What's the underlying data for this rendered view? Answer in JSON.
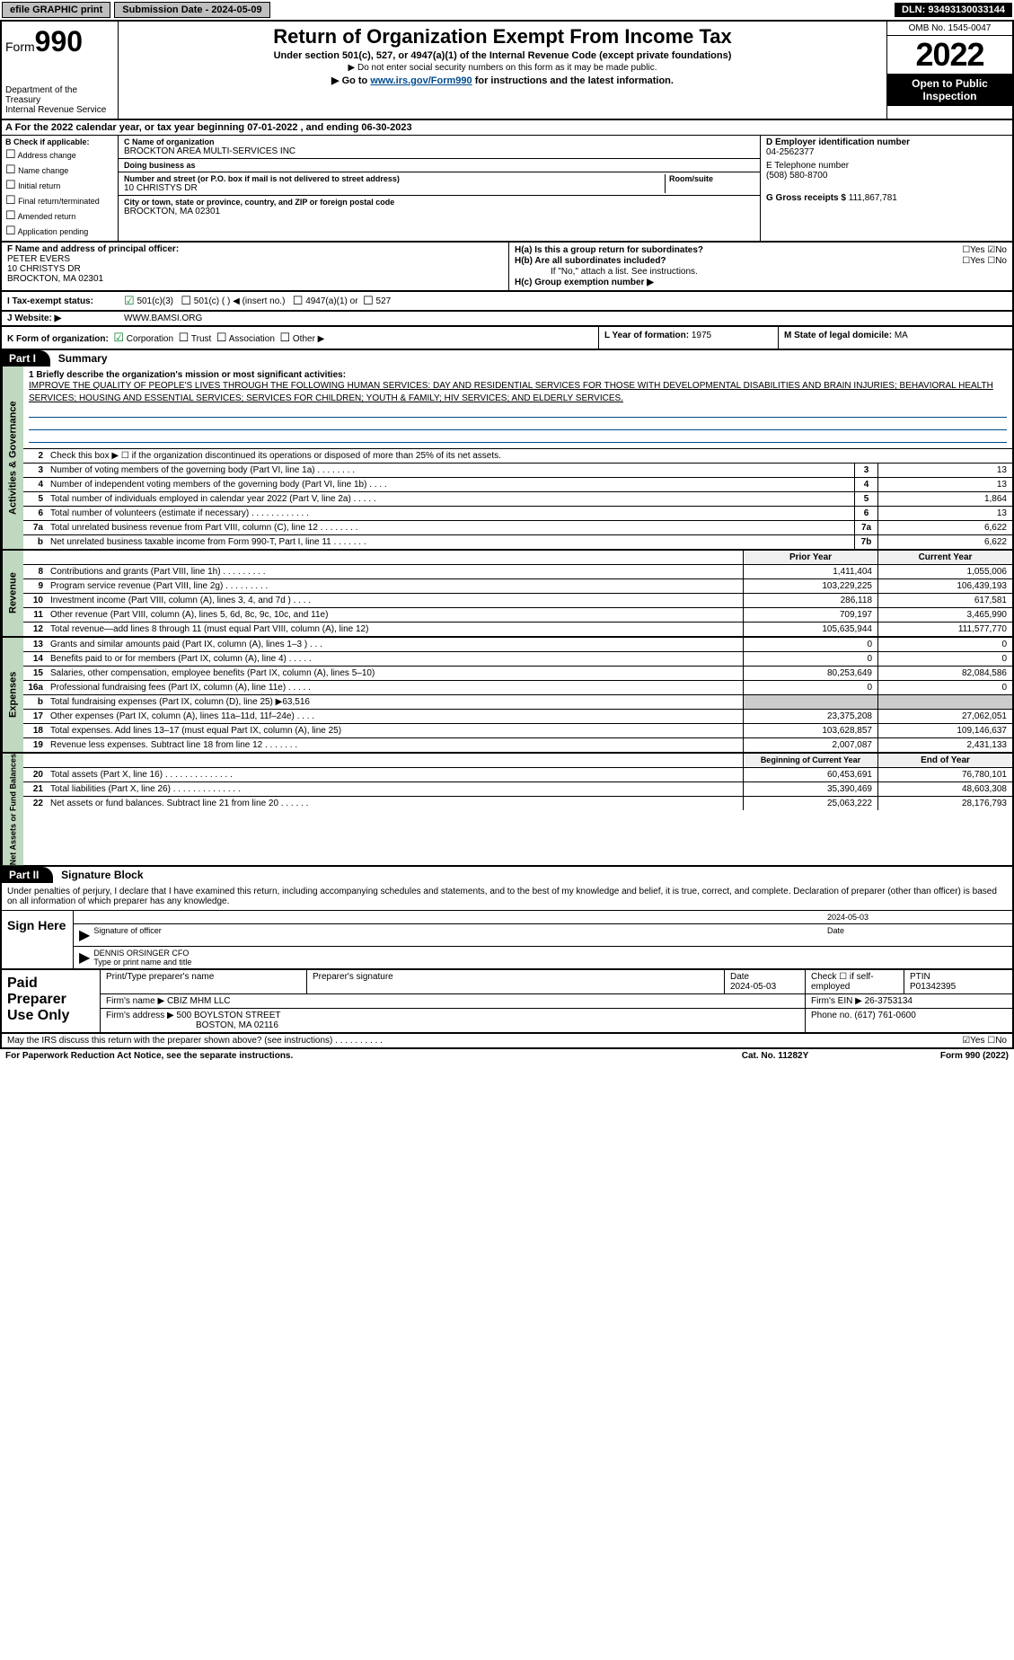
{
  "topbar": {
    "efile": "efile GRAPHIC print",
    "submission": "Submission Date - 2024-05-09",
    "dln": "DLN: 93493130033144"
  },
  "header": {
    "form_word": "Form",
    "form_num": "990",
    "dept": "Department of the Treasury",
    "irs": "Internal Revenue Service",
    "title": "Return of Organization Exempt From Income Tax",
    "sub": "Under section 501(c), 527, or 4947(a)(1) of the Internal Revenue Code (except private foundations)",
    "note1": "▶ Do not enter social security numbers on this form as it may be made public.",
    "note2_pre": "▶ Go to ",
    "note2_link": "www.irs.gov/Form990",
    "note2_post": " for instructions and the latest information.",
    "omb": "OMB No. 1545-0047",
    "year": "2022",
    "otp": "Open to Public Inspection"
  },
  "row_a": "A For the 2022 calendar year, or tax year beginning 07-01-2022    , and ending 06-30-2023",
  "col_b": {
    "title": "B Check if applicable:",
    "items": [
      "Address change",
      "Name change",
      "Initial return",
      "Final return/terminated",
      "Amended return",
      "Application pending"
    ]
  },
  "col_c": {
    "name_lbl": "C Name of organization",
    "name": "BROCKTON AREA MULTI-SERVICES INC",
    "dba_lbl": "Doing business as",
    "dba": "",
    "addr_lbl": "Number and street (or P.O. box if mail is not delivered to street address)",
    "room_lbl": "Room/suite",
    "addr": "10 CHRISTYS DR",
    "city_lbl": "City or town, state or province, country, and ZIP or foreign postal code",
    "city": "BROCKTON, MA  02301"
  },
  "col_d": {
    "ein_lbl": "D Employer identification number",
    "ein": "04-2562377",
    "tel_lbl": "E Telephone number",
    "tel": "(508) 580-8700",
    "gross_lbl": "G Gross receipts $",
    "gross": "111,867,781"
  },
  "col_f": {
    "lbl": "F Name and address of principal officer:",
    "name": "PETER EVERS",
    "addr1": "10 CHRISTYS DR",
    "addr2": "BROCKTON, MA  02301"
  },
  "col_h": {
    "ha": "H(a)  Is this a group return for subordinates?",
    "ha_ans": "☐Yes ☑No",
    "hb": "H(b)  Are all subordinates included?",
    "hb_ans": "☐Yes ☐No",
    "hb_note": "If \"No,\" attach a list. See instructions.",
    "hc": "H(c)  Group exemption number ▶"
  },
  "row_i": {
    "lbl": "I   Tax-exempt status:",
    "opt1": "501(c)(3)",
    "opt2": "501(c) (  ) ◀ (insert no.)",
    "opt3": "4947(a)(1) or",
    "opt4": "527"
  },
  "row_j": {
    "lbl": "J   Website: ▶",
    "val": "WWW.BAMSI.ORG"
  },
  "row_k": {
    "lbl": "K Form of organization:",
    "opts": [
      "Corporation",
      "Trust",
      "Association",
      "Other ▶"
    ]
  },
  "row_l": {
    "year_lbl": "L Year of formation:",
    "year": "1975",
    "state_lbl": "M State of legal domicile:",
    "state": "MA"
  },
  "part1": {
    "tab": "Part I",
    "title": "Summary",
    "mission_lbl": "1  Briefly describe the organization's mission or most significant activities:",
    "mission": "IMPROVE THE QUALITY OF PEOPLE'S LIVES THROUGH THE FOLLOWING HUMAN SERVICES: DAY AND RESIDENTIAL SERVICES FOR THOSE WITH DEVELOPMENTAL DISABILITIES AND BRAIN INJURIES; BEHAVIORAL HEALTH SERVICES; HOUSING AND ESSENTIAL SERVICES; SERVICES FOR CHILDREN; YOUTH & FAMILY; HIV SERVICES; AND ELDERLY SERVICES.",
    "line2": "Check this box ▶ ☐  if the organization discontinued its operations or disposed of more than 25% of its net assets.",
    "vtabs": {
      "gov": "Activities & Governance",
      "rev": "Revenue",
      "exp": "Expenses",
      "net": "Net Assets or Fund Balances"
    },
    "gov_lines": [
      {
        "n": "3",
        "d": "Number of voting members of the governing body (Part VI, line 1a)   .    .    .    .    .    .    .    .",
        "b": "3",
        "v": "13"
      },
      {
        "n": "4",
        "d": "Number of independent voting members of the governing body (Part VI, line 1b)  .    .    .    .",
        "b": "4",
        "v": "13"
      },
      {
        "n": "5",
        "d": "Total number of individuals employed in calendar year 2022 (Part V, line 2a)   .    .    .    .    .",
        "b": "5",
        "v": "1,864"
      },
      {
        "n": "6",
        "d": "Total number of volunteers (estimate if necessary)    .    .    .    .    .    .    .    .    .    .    .    .",
        "b": "6",
        "v": "13"
      },
      {
        "n": "7a",
        "d": "Total unrelated business revenue from Part VIII, column (C), line 12   .    .    .    .    .    .    .    .",
        "b": "7a",
        "v": "6,622"
      },
      {
        "n": "b",
        "d": "Net unrelated business taxable income from Form 990-T, Part I, line 11  .    .    .    .    .    .    .",
        "b": "7b",
        "v": "6,622"
      }
    ],
    "col_hdr": {
      "py": "Prior Year",
      "cy": "Current Year"
    },
    "rev_lines": [
      {
        "n": "8",
        "d": "Contributions and grants (Part VIII, line 1h)   .    .    .    .    .    .    .    .    .",
        "py": "1,411,404",
        "cy": "1,055,006"
      },
      {
        "n": "9",
        "d": "Program service revenue (Part VIII, line 2g)   .    .    .    .    .    .    .    .    .",
        "py": "103,229,225",
        "cy": "106,439,193"
      },
      {
        "n": "10",
        "d": "Investment income (Part VIII, column (A), lines 3, 4, and 7d )   .    .    .    .",
        "py": "286,118",
        "cy": "617,581"
      },
      {
        "n": "11",
        "d": "Other revenue (Part VIII, column (A), lines 5, 6d, 8c, 9c, 10c, and 11e)",
        "py": "709,197",
        "cy": "3,465,990"
      },
      {
        "n": "12",
        "d": "Total revenue—add lines 8 through 11 (must equal Part VIII, column (A), line 12)",
        "py": "105,635,944",
        "cy": "111,577,770"
      }
    ],
    "exp_lines": [
      {
        "n": "13",
        "d": "Grants and similar amounts paid (Part IX, column (A), lines 1–3 )  .    .    .",
        "py": "0",
        "cy": "0"
      },
      {
        "n": "14",
        "d": "Benefits paid to or for members (Part IX, column (A), line 4)  .    .    .    .    .",
        "py": "0",
        "cy": "0"
      },
      {
        "n": "15",
        "d": "Salaries, other compensation, employee benefits (Part IX, column (A), lines 5–10)",
        "py": "80,253,649",
        "cy": "82,084,586"
      },
      {
        "n": "16a",
        "d": "Professional fundraising fees (Part IX, column (A), line 11e)  .    .    .    .    .",
        "py": "0",
        "cy": "0"
      },
      {
        "n": "b",
        "d": "Total fundraising expenses (Part IX, column (D), line 25) ▶63,516",
        "py": "",
        "cy": "",
        "shade": true
      },
      {
        "n": "17",
        "d": "Other expenses (Part IX, column (A), lines 11a–11d, 11f–24e)  .    .    .    .",
        "py": "23,375,208",
        "cy": "27,062,051"
      },
      {
        "n": "18",
        "d": "Total expenses. Add lines 13–17 (must equal Part IX, column (A), line 25)",
        "py": "103,628,857",
        "cy": "109,146,637"
      },
      {
        "n": "19",
        "d": "Revenue less expenses. Subtract line 18 from line 12  .    .    .    .    .    .    .",
        "py": "2,007,087",
        "cy": "2,431,133"
      }
    ],
    "net_hdr": {
      "py": "Beginning of Current Year",
      "cy": "End of Year"
    },
    "net_lines": [
      {
        "n": "20",
        "d": "Total assets (Part X, line 16)  .    .    .    .    .    .    .    .    .    .    .    .    .    .",
        "py": "60,453,691",
        "cy": "76,780,101"
      },
      {
        "n": "21",
        "d": "Total liabilities (Part X, line 26) .    .    .    .    .    .    .    .    .    .    .    .    .    .",
        "py": "35,390,469",
        "cy": "48,603,308"
      },
      {
        "n": "22",
        "d": "Net assets or fund balances. Subtract line 21 from line 20  .    .    .    .    .    .",
        "py": "25,063,222",
        "cy": "28,176,793"
      }
    ]
  },
  "part2": {
    "tab": "Part II",
    "title": "Signature Block",
    "decl": "Under penalties of perjury, I declare that I have examined this return, including accompanying schedules and statements, and to the best of my knowledge and belief, it is true, correct, and complete. Declaration of preparer (other than officer) is based on all information of which preparer has any knowledge.",
    "sign_here": "Sign Here",
    "sig_date": "2024-05-03",
    "sig_lbl": "Signature of officer",
    "date_lbl": "Date",
    "officer": "DENNIS ORSINGER  CFO",
    "officer_lbl": "Type or print name and title",
    "paid": "Paid Preparer Use Only",
    "prep_hdrs": {
      "name": "Print/Type preparer's name",
      "sig": "Preparer's signature",
      "date": "Date",
      "check": "Check ☐ if self-employed",
      "ptin": "PTIN"
    },
    "prep_date": "2024-05-03",
    "ptin": "P01342395",
    "firm_name_lbl": "Firm's name    ▶",
    "firm_name": "CBIZ MHM LLC",
    "firm_ein_lbl": "Firm's EIN ▶",
    "firm_ein": "26-3753134",
    "firm_addr_lbl": "Firm's address ▶",
    "firm_addr1": "500 BOYLSTON STREET",
    "firm_addr2": "BOSTON, MA  02116",
    "phone_lbl": "Phone no.",
    "phone": "(617) 761-0600",
    "discuss": "May the IRS discuss this return with the preparer shown above? (see instructions)   .    .    .    .    .    .    .    .    .    .",
    "discuss_ans": "☑Yes  ☐No"
  },
  "footer": {
    "pra": "For Paperwork Reduction Act Notice, see the separate instructions.",
    "cat": "Cat. No. 11282Y",
    "form": "Form 990 (2022)"
  }
}
